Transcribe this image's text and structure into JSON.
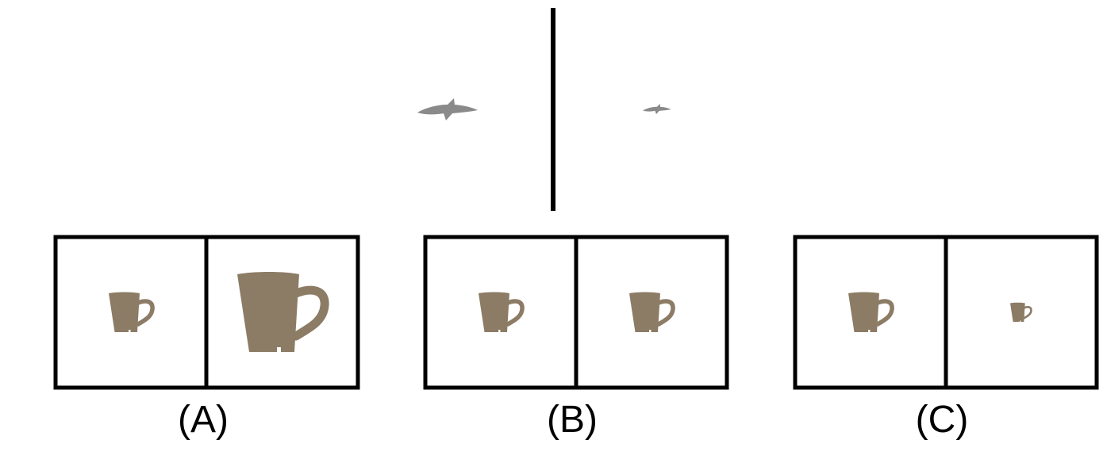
{
  "labels": [
    "(A)",
    "(B)",
    "(C)"
  ]
}
